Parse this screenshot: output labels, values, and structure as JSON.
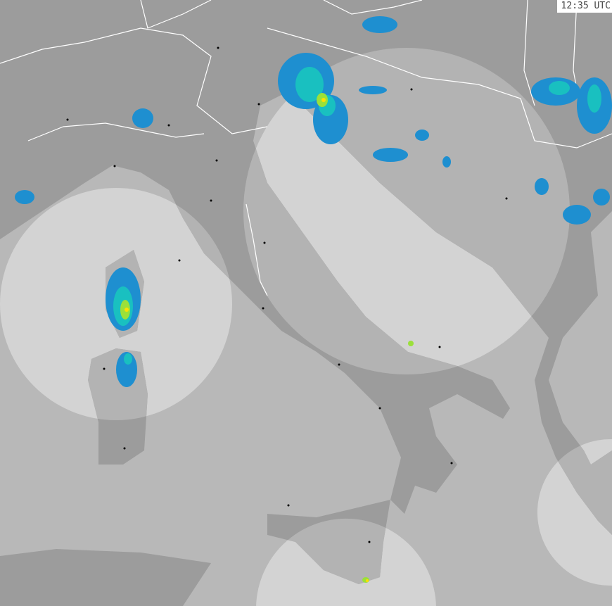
{
  "timestamp": "12:35 UTC",
  "map": {
    "type": "precipitation radar composite",
    "colors": {
      "sea": "#b8b8b8",
      "land": "#9c9c9c",
      "radar_sea": "#d3d3d3",
      "radar_land": "#b3b3b3",
      "borders": "#ffffff",
      "rain_light": "#1e8fd0",
      "rain_moderate": "#19c0c0",
      "rain_heavy": "#9be03a",
      "rain_intense": "#ffe000"
    }
  }
}
